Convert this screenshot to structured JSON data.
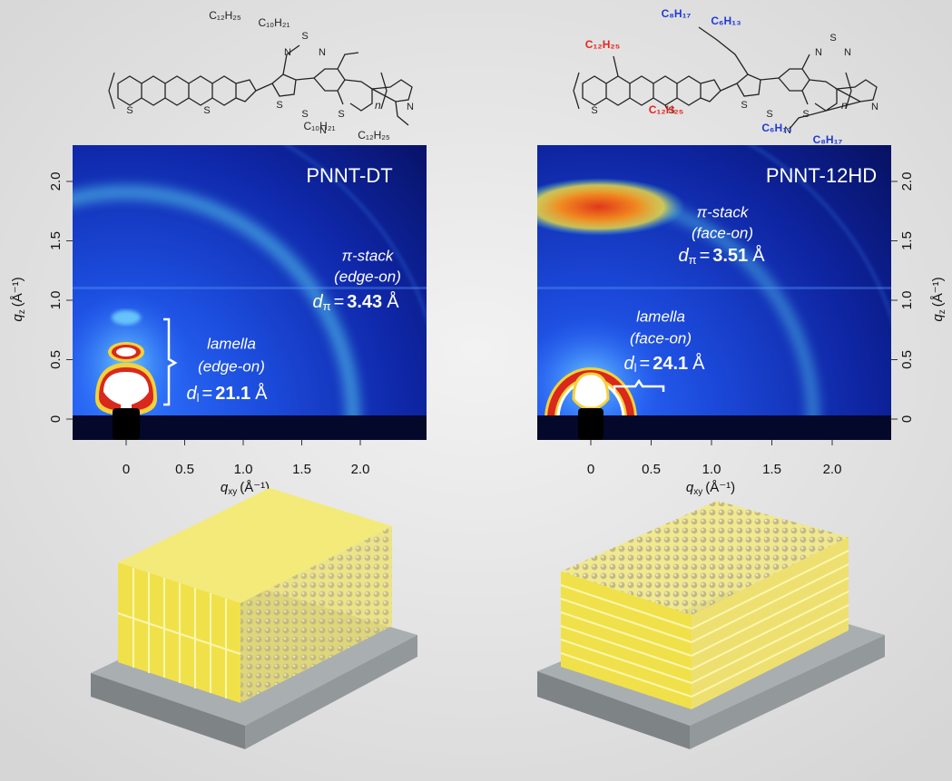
{
  "panels": [
    {
      "structure": {
        "atoms": [
          "S",
          "S",
          "S",
          "N",
          "S",
          "N",
          "S",
          "N",
          "S",
          "N"
        ],
        "side_chains": [
          {
            "text": "C₁₂H₂₅",
            "color": "#222222"
          },
          {
            "text": "C₁₀H₂₁",
            "color": "#222222"
          },
          {
            "text": "C₁₀H₂₁",
            "color": "#222222"
          },
          {
            "text": "C₁₂H₂₅",
            "color": "#222222"
          }
        ],
        "repeat": "n"
      },
      "title": "PNNT-DT",
      "pi_stack": {
        "label": "π-stack",
        "orientation": "(edge-on)",
        "symbol": "d",
        "subscript": "π",
        "relation": "=",
        "value": "3.43",
        "unit": "Å"
      },
      "lamella": {
        "label": "lamella",
        "orientation": "(edge-on)",
        "symbol": "d",
        "subscript": "l",
        "relation": "=",
        "value": "21.1",
        "unit": "Å"
      },
      "x_axis": {
        "symbol": "q",
        "subscript": "xy",
        "unit": "(Å⁻¹)",
        "ticks": [
          "0",
          "0.5",
          "1.0",
          "1.5",
          "2.0"
        ]
      },
      "y_axis": {
        "symbol": "q",
        "subscript": "z",
        "unit": "(Å⁻¹)",
        "ticks": [
          "0",
          "0.5",
          "1.0",
          "1.5",
          "2.0"
        ]
      }
    },
    {
      "structure": {
        "atoms": [
          "S",
          "S",
          "S",
          "N",
          "S",
          "N",
          "S",
          "N",
          "S",
          "N"
        ],
        "side_chains": [
          {
            "text": "C₁₂H₂₅",
            "color": "#e8231d"
          },
          {
            "text": "C₁₂H₂₅",
            "color": "#e8231d"
          },
          {
            "text": "C₈H₁₇",
            "color": "#1f3bd6"
          },
          {
            "text": "C₆H₁₃",
            "color": "#1f3bd6"
          },
          {
            "text": "C₆H₁₃",
            "color": "#1f3bd6"
          },
          {
            "text": "C₈H₁₇",
            "color": "#1f3bd6"
          }
        ],
        "repeat": "n"
      },
      "title": "PNNT-12HD",
      "pi_stack": {
        "label": "π-stack",
        "orientation": "(face-on)",
        "symbol": "d",
        "subscript": "π",
        "relation": "=",
        "value": "3.51",
        "unit": "Å"
      },
      "lamella": {
        "label": "lamella",
        "orientation": "(face-on)",
        "symbol": "d",
        "subscript": "l",
        "relation": "=",
        "value": "24.1",
        "unit": "Å"
      },
      "x_axis": {
        "symbol": "q",
        "subscript": "xy",
        "unit": "(Å⁻¹)",
        "ticks": [
          "0",
          "0.5",
          "1.0",
          "1.5",
          "2.0"
        ]
      },
      "y_axis": {
        "symbol": "q",
        "subscript": "z",
        "unit": "(Å⁻¹)",
        "ticks": [
          "0",
          "0.5",
          "1.0",
          "1.5",
          "2.0"
        ]
      }
    }
  ]
}
